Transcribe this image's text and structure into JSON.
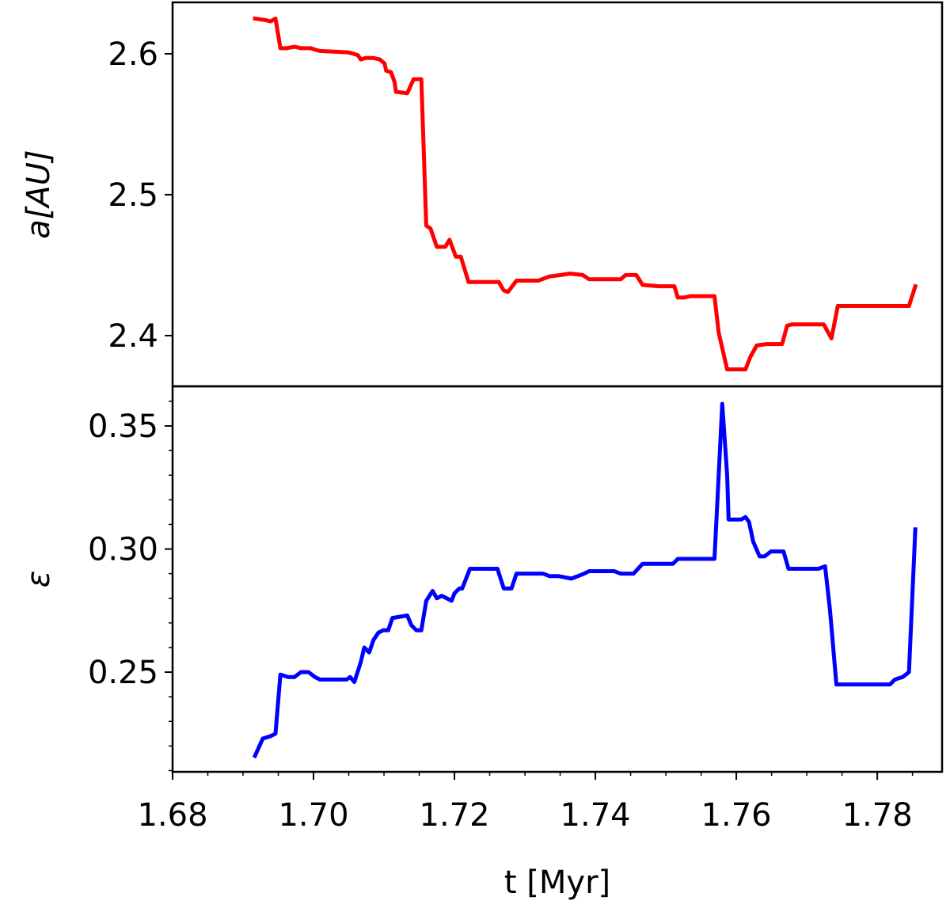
{
  "chart_data": [
    {
      "type": "line",
      "ylabel": "a[AU]",
      "color": "#ff0000",
      "xlim": [
        1.68,
        1.7892
      ],
      "ylim": [
        2.364,
        2.6365
      ],
      "yticks": [
        2.4,
        2.5,
        2.6
      ],
      "x": [
        1.6917,
        1.6931,
        1.6939,
        1.6946,
        1.6953,
        1.6962,
        1.6973,
        1.6982,
        1.6996,
        1.7002,
        1.7009,
        1.7049,
        1.7057,
        1.7063,
        1.7067,
        1.7074,
        1.7081,
        1.7085,
        1.7094,
        1.7101,
        1.7103,
        1.711,
        1.7115,
        1.7117,
        1.7133,
        1.7142,
        1.7153,
        1.716,
        1.7166,
        1.7175,
        1.7187,
        1.7193,
        1.7202,
        1.7209,
        1.722,
        1.7252,
        1.7263,
        1.727,
        1.7276,
        1.7288,
        1.7319,
        1.7335,
        1.7351,
        1.7364,
        1.7382,
        1.7391,
        1.7436,
        1.7443,
        1.7458,
        1.7467,
        1.749,
        1.7512,
        1.7517,
        1.7526,
        1.7535,
        1.7569,
        1.7575,
        1.7587,
        1.7613,
        1.762,
        1.7629,
        1.7643,
        1.7665,
        1.7672,
        1.7679,
        1.7724,
        1.7735,
        1.7744,
        1.776,
        1.7845,
        1.7854
      ],
      "values": [
        2.625,
        2.624,
        2.623,
        2.625,
        2.604,
        2.604,
        2.605,
        2.604,
        2.604,
        2.603,
        2.602,
        2.601,
        2.6,
        2.599,
        2.596,
        2.597,
        2.597,
        2.597,
        2.596,
        2.593,
        2.588,
        2.587,
        2.58,
        2.573,
        2.572,
        2.582,
        2.582,
        2.478,
        2.476,
        2.463,
        2.463,
        2.468,
        2.456,
        2.456,
        2.438,
        2.438,
        2.438,
        2.432,
        2.431,
        2.439,
        2.439,
        2.442,
        2.443,
        2.444,
        2.443,
        2.44,
        2.44,
        2.443,
        2.443,
        2.436,
        2.435,
        2.435,
        2.427,
        2.427,
        2.428,
        2.428,
        2.402,
        2.376,
        2.376,
        2.385,
        2.393,
        2.394,
        2.394,
        2.407,
        2.408,
        2.408,
        2.398,
        2.421,
        2.421,
        2.421,
        2.435
      ]
    },
    {
      "type": "line",
      "ylabel": "ε",
      "xlabel": "t [Myr]",
      "color": "#0000ff",
      "xlim": [
        1.68,
        1.7892
      ],
      "ylim": [
        0.2095,
        0.3661
      ],
      "xticks": [
        1.68,
        {
          "value": 1.7,
          "label": "1.70"
        },
        1.72,
        1.74,
        1.76,
        1.78
      ],
      "yticks": [
        0.25,
        {
          "value": 0.3,
          "label": "0.30"
        },
        0.35
      ],
      "xminorticks": [
        1.685,
        1.69,
        1.695,
        1.705,
        1.71,
        1.715,
        1.725,
        1.73,
        1.735,
        1.745,
        1.75,
        1.755,
        1.765,
        1.77,
        1.775,
        1.785
      ],
      "yminorticks": [
        0.21,
        0.22,
        0.23,
        0.24,
        0.26,
        0.27,
        0.28,
        0.29,
        0.31,
        0.32,
        0.33,
        0.34,
        0.36
      ],
      "x": [
        1.6917,
        1.6928,
        1.6939,
        1.6946,
        1.6953,
        1.6964,
        1.6973,
        1.6982,
        1.6993,
        1.7002,
        1.7009,
        1.7027,
        1.7038,
        1.7047,
        1.7052,
        1.7058,
        1.7067,
        1.7072,
        1.7079,
        1.7085,
        1.7092,
        1.7099,
        1.7106,
        1.7112,
        1.7133,
        1.7139,
        1.7146,
        1.7153,
        1.716,
        1.7169,
        1.7175,
        1.7182,
        1.7189,
        1.7196,
        1.72,
        1.7207,
        1.7211,
        1.7222,
        1.7261,
        1.727,
        1.7281,
        1.7288,
        1.7297,
        1.7326,
        1.7335,
        1.7348,
        1.7366,
        1.7375,
        1.7384,
        1.7391,
        1.7427,
        1.7436,
        1.7454,
        1.7467,
        1.751,
        1.7517,
        1.7533,
        1.7544,
        1.7555,
        1.7569,
        1.7575,
        1.758,
        1.7587,
        1.7589,
        1.7607,
        1.7613,
        1.7618,
        1.7624,
        1.7633,
        1.764,
        1.7649,
        1.7667,
        1.7674,
        1.7717,
        1.7726,
        1.7733,
        1.7742,
        1.7757,
        1.7818,
        1.7825,
        1.7836,
        1.7845,
        1.7854
      ],
      "values": [
        0.216,
        0.223,
        0.224,
        0.225,
        0.249,
        0.248,
        0.248,
        0.25,
        0.25,
        0.248,
        0.247,
        0.247,
        0.247,
        0.247,
        0.248,
        0.246,
        0.254,
        0.26,
        0.258,
        0.263,
        0.266,
        0.267,
        0.267,
        0.272,
        0.273,
        0.269,
        0.267,
        0.267,
        0.279,
        0.283,
        0.28,
        0.281,
        0.28,
        0.279,
        0.282,
        0.284,
        0.284,
        0.292,
        0.292,
        0.284,
        0.284,
        0.29,
        0.29,
        0.29,
        0.289,
        0.289,
        0.288,
        0.289,
        0.29,
        0.291,
        0.291,
        0.29,
        0.29,
        0.294,
        0.294,
        0.296,
        0.296,
        0.296,
        0.296,
        0.296,
        0.33,
        0.359,
        0.33,
        0.312,
        0.312,
        0.313,
        0.311,
        0.303,
        0.297,
        0.297,
        0.299,
        0.299,
        0.292,
        0.292,
        0.293,
        0.275,
        0.245,
        0.245,
        0.245,
        0.247,
        0.248,
        0.25,
        0.308
      ]
    }
  ]
}
